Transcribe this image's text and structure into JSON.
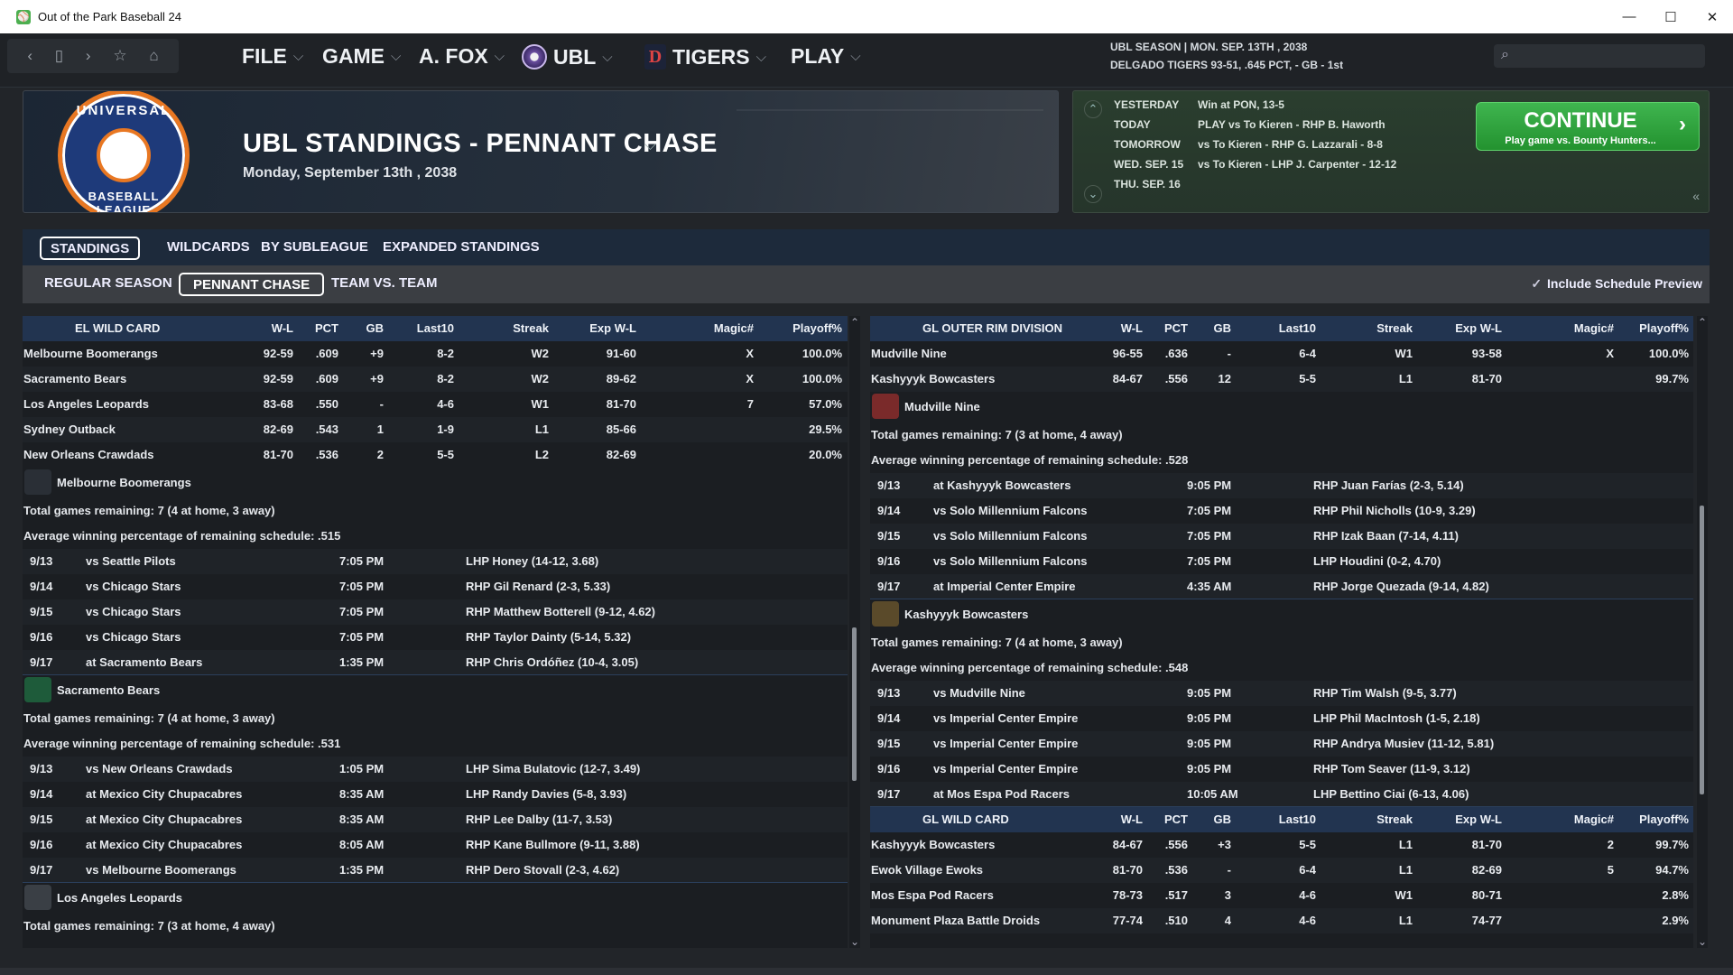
{
  "window": {
    "title": "Out of the Park Baseball 24",
    "minimize": "—",
    "maximize": "☐",
    "close": "✕"
  },
  "menu": {
    "file": "FILE",
    "game": "GAME",
    "manager": "A. FOX",
    "league": "UBL",
    "team": "TIGERS",
    "play": "PLAY",
    "chev": "⌵"
  },
  "season": {
    "line1": "UBL SEASON  |  MON. SEP. 13TH , 2038",
    "line2": "DELGADO TIGERS  93-51, .645 PCT, - GB - 1st"
  },
  "header": {
    "title": "UBL STANDINGS - PENNANT CHASE",
    "date": "Monday, September 13th , 2038",
    "logo_top": "UNIVERSAL",
    "logo_bottom": "BASEBALL LEAGUE"
  },
  "schedule": [
    {
      "label": "YESTERDAY",
      "text": "Win at PON, 13-5"
    },
    {
      "label": "TODAY",
      "text": "PLAY vs To Kieren - RHP B. Haworth"
    },
    {
      "label": "TOMORROW",
      "text": "vs To Kieren - RHP G. Lazzarali - 8-8"
    },
    {
      "label": "WED. SEP. 15",
      "text": "vs To Kieren - LHP J. Carpenter - 12-12"
    },
    {
      "label": "THU. SEP. 16",
      "text": ""
    }
  ],
  "continue": {
    "label": "CONTINUE",
    "sub": "Play game vs. Bounty Hunters...",
    "arrow": "›"
  },
  "tabs1": [
    "STANDINGS",
    "WILDCARDS",
    "BY SUBLEAGUE",
    "EXPANDED STANDINGS"
  ],
  "tabs2": [
    "REGULAR SEASON",
    "PENNANT CHASE",
    "TEAM VS. TEAM"
  ],
  "schedule_preview": "Include Schedule Preview",
  "columns": [
    "W-L",
    "PCT",
    "GB",
    "Last10",
    "Streak",
    "Exp W-L",
    "Magic#",
    "Playoff%"
  ],
  "left": {
    "table_title": "EL  WILD CARD",
    "rows": [
      [
        "Melbourne Boomerangs",
        "92-59",
        ".609",
        "+9",
        "8-2",
        "W2",
        "91-60",
        "X",
        "100.0%"
      ],
      [
        "Sacramento Bears",
        "92-59",
        ".609",
        "+9",
        "8-2",
        "W2",
        "89-62",
        "X",
        "100.0%"
      ],
      [
        "Los Angeles Leopards",
        "83-68",
        ".550",
        "-",
        "4-6",
        "W1",
        "81-70",
        "7",
        "57.0%"
      ],
      [
        "Sydney Outback",
        "82-69",
        ".543",
        "1",
        "1-9",
        "L1",
        "85-66",
        "",
        "29.5%"
      ],
      [
        "New Orleans Crawdads",
        "81-70",
        ".536",
        "2",
        "5-5",
        "L2",
        "82-69",
        "",
        "20.0%"
      ]
    ],
    "teams": [
      {
        "name": "Melbourne Boomerangs",
        "remaining": "Total games remaining: 7 (4 at home, 3 away)",
        "avg": "Average winning percentage of remaining schedule: .515",
        "games": [
          [
            "9/13",
            "vs Seattle Pilots",
            "7:05 PM",
            "LHP    Honey (14-12, 3.68)"
          ],
          [
            "9/14",
            "vs Chicago Stars",
            "7:05 PM",
            "RHP Gil Renard (2-3, 5.33)"
          ],
          [
            "9/15",
            "vs Chicago Stars",
            "7:05 PM",
            "RHP Matthew Botterell (9-12, 4.62)"
          ],
          [
            "9/16",
            "vs Chicago Stars",
            "7:05 PM",
            "RHP Taylor Dainty (5-14, 5.32)"
          ],
          [
            "9/17",
            "at Sacramento Bears",
            "1:35 PM",
            "RHP Chris Ordóñez (10-4, 3.05)"
          ]
        ]
      },
      {
        "name": "Sacramento Bears",
        "remaining": "Total games remaining: 7 (4 at home, 3 away)",
        "avg": "Average winning percentage of remaining schedule: .531",
        "games": [
          [
            "9/13",
            "vs New Orleans Crawdads",
            "1:05 PM",
            "LHP Sima Bulatovic (12-7, 3.49)"
          ],
          [
            "9/14",
            "at Mexico City Chupacabres",
            "8:35 AM",
            "LHP Randy Davies (5-8, 3.93)"
          ],
          [
            "9/15",
            "at Mexico City Chupacabres",
            "8:35 AM",
            "RHP Lee Dalby (11-7, 3.53)"
          ],
          [
            "9/16",
            "at Mexico City Chupacabres",
            "8:05 AM",
            "RHP Kane Bullmore (9-11, 3.88)"
          ],
          [
            "9/17",
            "vs Melbourne Boomerangs",
            "1:35 PM",
            "RHP Dero Stovall (2-3, 4.62)"
          ]
        ]
      },
      {
        "name": "Los Angeles Leopards",
        "remaining": "Total games remaining: 7 (3 at home, 4 away)"
      }
    ]
  },
  "right": {
    "table_title": "GL OUTER RIM DIVISION",
    "rows": [
      [
        "Mudville Nine",
        "96-55",
        ".636",
        "-",
        "6-4",
        "W1",
        "93-58",
        "X",
        "100.0%"
      ],
      [
        "Kashyyyk Bowcasters",
        "84-67",
        ".556",
        "12",
        "5-5",
        "L1",
        "81-70",
        "",
        "99.7%"
      ]
    ],
    "teams": [
      {
        "name": "Mudville Nine",
        "remaining": "Total games remaining: 7 (3 at home, 4 away)",
        "avg": "Average winning percentage of remaining schedule: .528",
        "games": [
          [
            "9/13",
            "at Kashyyyk Bowcasters",
            "9:05 PM",
            "RHP Juan Farías (2-3, 5.14)"
          ],
          [
            "9/14",
            "vs Solo Millennium Falcons",
            "7:05 PM",
            "RHP Phil Nicholls (10-9, 3.29)"
          ],
          [
            "9/15",
            "vs Solo Millennium Falcons",
            "7:05 PM",
            "RHP Izak Baan (7-14, 4.11)"
          ],
          [
            "9/16",
            "vs Solo Millennium Falcons",
            "7:05 PM",
            "LHP    Houdini (0-2, 4.70)"
          ],
          [
            "9/17",
            "at Imperial Center Empire",
            "4:35 AM",
            "RHP Jorge Quezada (9-14, 4.82)"
          ]
        ]
      },
      {
        "name": "Kashyyyk Bowcasters",
        "remaining": "Total games remaining: 7 (4 at home, 3 away)",
        "avg": "Average winning percentage of remaining schedule: .548",
        "games": [
          [
            "9/13",
            "vs Mudville Nine",
            "9:05 PM",
            "RHP Tim Walsh (9-5, 3.77)"
          ],
          [
            "9/14",
            "vs Imperial Center Empire",
            "9:05 PM",
            "LHP Phil MacIntosh (1-5, 2.18)"
          ],
          [
            "9/15",
            "vs Imperial Center Empire",
            "9:05 PM",
            "RHP Andrya Musiev (11-12, 5.81)"
          ],
          [
            "9/16",
            "vs Imperial Center Empire",
            "9:05 PM",
            "RHP Tom Seaver (11-9, 3.12)"
          ],
          [
            "9/17",
            "at Mos Espa Pod Racers",
            "10:05 AM",
            "LHP Bettino Ciai (6-13, 4.06)"
          ]
        ]
      }
    ],
    "wc_title": "GL  WILD CARD",
    "wc_rows": [
      [
        "Kashyyyk Bowcasters",
        "84-67",
        ".556",
        "+3",
        "5-5",
        "L1",
        "81-70",
        "2",
        "99.7%"
      ],
      [
        "Ewok Village Ewoks",
        "81-70",
        ".536",
        "-",
        "6-4",
        "L1",
        "82-69",
        "5",
        "94.7%"
      ],
      [
        "Mos Espa Pod Racers",
        "78-73",
        ".517",
        "3",
        "4-6",
        "W1",
        "80-71",
        "",
        "2.8%"
      ],
      [
        "Monument Plaza Battle Droids",
        "77-74",
        ".510",
        "4",
        "4-6",
        "L1",
        "74-77",
        "",
        "2.9%"
      ]
    ]
  },
  "colors": {
    "accent_green": "#2fa43d",
    "header_blue": "#223450",
    "bg": "#1b1e22"
  },
  "icons": {
    "back": "‹",
    "page": "▯",
    "forward": "›",
    "star": "☆",
    "home": "⌂",
    "search": "⌕",
    "up": "⌃",
    "down": "⌄",
    "collapse": "«",
    "check": "✓"
  }
}
